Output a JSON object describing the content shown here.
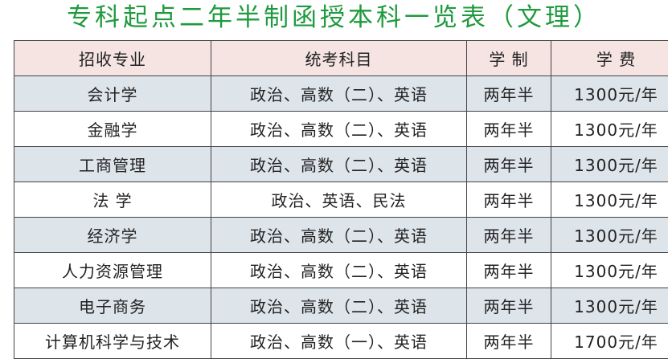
{
  "title": "专科起点二年半制函授本科一览表（文理）",
  "headers": [
    "招收专业",
    "统考科目",
    "学 制",
    "学 费"
  ],
  "rows": [
    [
      "会计学",
      "政治、高数（二）、英语",
      "两年半",
      "1300元/年"
    ],
    [
      "金融学",
      "政治、高数（二）、英语",
      "两年半",
      "1300元/年"
    ],
    [
      "工商管理",
      "政治、高数（二）、英语",
      "两年半",
      "1300元/年"
    ],
    [
      "法 学",
      "政治、英语、民法",
      "两年半",
      "1300元/年"
    ],
    [
      "经济学",
      "政治、高数（二）、英语",
      "两年半",
      "1300元/年"
    ],
    [
      "人力资源管理",
      "政治、高数（二）、英语",
      "两年半",
      "1300元/年"
    ],
    [
      "电子商务",
      "政治、高数（二）、英语",
      "两年半",
      "1300元/年"
    ],
    [
      "计算机科学与技术",
      "政治、高数（一）、英语",
      "两年半",
      "1700元/年"
    ]
  ],
  "colors": {
    "title": "#1f9a3e",
    "header_bg": "#f5e4e2",
    "row_alt_bg": "#dde4ea"
  }
}
